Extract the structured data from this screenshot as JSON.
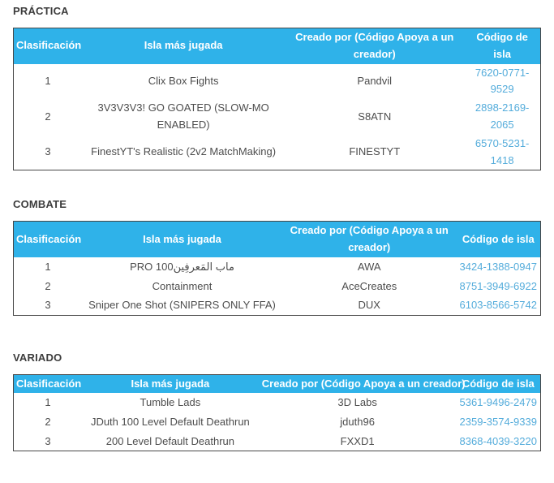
{
  "colors": {
    "header_bg": "#2FB2E9",
    "code_link": "#54ACDB",
    "body_text": "#4d4d4d",
    "title_text": "#3c3c3c",
    "table_border": "#474747"
  },
  "sections": [
    {
      "title": "PRÁCTICA",
      "columns": [
        "Clasificación",
        "Isla más jugada",
        "Creado por (Código Apoya a un creador)",
        "Código de isla"
      ],
      "rows": [
        {
          "rank": "1",
          "island": "Clix Box Fights",
          "creator": "Pandvil",
          "code": "7620-0771-9529"
        },
        {
          "rank": "2",
          "island": "3V3V3V3! GO GOATED (SLOW-MO ENABLED)",
          "creator": "S8ATN",
          "code": "2898-2169-2065"
        },
        {
          "rank": "3",
          "island": "FinestYT's Realistic (2v2 MatchMaking)",
          "creator": "FINESTYT",
          "code": "6570-5231-1418"
        }
      ]
    },
    {
      "title": "COMBATE",
      "columns": [
        "Clasificación",
        "Isla más jugada",
        "Creado por (Código Apoya a un creador)",
        "Código de isla"
      ],
      "rows": [
        {
          "rank": "1",
          "island": "PRO 100ماب المَعرفِين",
          "creator": "AWA",
          "code": "3424-1388-0947"
        },
        {
          "rank": "2",
          "island": "Containment",
          "creator": "AceCreates",
          "code": "8751-3949-6922"
        },
        {
          "rank": "3",
          "island": "Sniper One Shot (SNIPERS ONLY FFA)",
          "creator": "DUX",
          "code": "6103-8566-5742"
        }
      ]
    },
    {
      "title": "VARIADO",
      "columns": [
        "Clasificación",
        "Isla más jugada",
        "Creado por (Código Apoya a un creador)",
        "Código de isla"
      ],
      "rows": [
        {
          "rank": "1",
          "island": "Tumble Lads",
          "creator": "3D Labs",
          "code": "5361-9496-2479"
        },
        {
          "rank": "2",
          "island": "JDuth 100 Level Default Deathrun",
          "creator": "jduth96",
          "code": "2359-3574-9339"
        },
        {
          "rank": "3",
          "island": "200 Level Default Deathrun",
          "creator": "FXXD1",
          "code": "8368-4039-3220"
        }
      ]
    }
  ]
}
